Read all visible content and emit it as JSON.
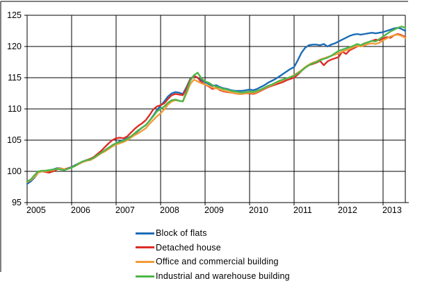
{
  "figure": {
    "background": "#ffffff",
    "frame_color": "#000000",
    "grid_color": "#000000"
  },
  "chart_data": {
    "type": "line",
    "title": "",
    "xlabel": "",
    "ylabel": "",
    "grid": true,
    "legend_position": "bottom-center",
    "x_start_year": 2005,
    "x_frequency": "monthly",
    "x_end_label": "2013-07",
    "x_tick_labels": [
      "2005",
      "2006",
      "2007",
      "2008",
      "2009",
      "2010",
      "2011",
      "2012",
      "2013"
    ],
    "y_ticks": [
      95,
      100,
      105,
      110,
      115,
      120,
      125
    ],
    "ylim": [
      95,
      125
    ],
    "series": [
      {
        "name": "Block of flats",
        "color": "#1b6cb5",
        "values": [
          98.0,
          98.4,
          99.0,
          99.8,
          100.0,
          100.1,
          100.2,
          100.3,
          100.5,
          100.5,
          100.3,
          100.5,
          100.7,
          101.0,
          101.3,
          101.5,
          101.7,
          101.9,
          102.2,
          102.6,
          103.0,
          103.3,
          103.7,
          104.2,
          104.5,
          104.8,
          105.0,
          105.3,
          105.6,
          106.0,
          106.5,
          107.0,
          107.4,
          108.1,
          108.9,
          109.8,
          110.5,
          111.2,
          112.0,
          112.5,
          112.7,
          112.6,
          112.4,
          113.5,
          114.8,
          115.3,
          115.0,
          114.6,
          114.3,
          114.0,
          113.7,
          113.8,
          113.5,
          113.3,
          113.2,
          113.0,
          112.9,
          112.9,
          112.9,
          113.0,
          113.1,
          113.0,
          113.2,
          113.5,
          113.8,
          114.2,
          114.5,
          114.8,
          115.2,
          115.6,
          116.0,
          116.4,
          116.7,
          117.8,
          119.0,
          119.8,
          120.2,
          120.3,
          120.3,
          120.2,
          120.4,
          120.0,
          120.3,
          120.5,
          120.8,
          121.1,
          121.4,
          121.7,
          121.9,
          122.0,
          121.9,
          122.0,
          122.1,
          122.2,
          122.1,
          122.2,
          122.3,
          122.5,
          122.7,
          122.9,
          123.0,
          122.8,
          122.5
        ]
      },
      {
        "name": "Detached house",
        "color": "#dd2c25",
        "values": [
          98.3,
          98.6,
          99.2,
          99.9,
          100.0,
          99.9,
          99.8,
          100.0,
          100.3,
          100.5,
          100.3,
          100.5,
          100.6,
          100.9,
          101.2,
          101.5,
          101.8,
          102.0,
          102.3,
          102.8,
          103.3,
          103.9,
          104.5,
          105.0,
          105.3,
          105.4,
          105.3,
          105.6,
          106.2,
          106.8,
          107.3,
          107.7,
          108.2,
          109.0,
          109.9,
          110.4,
          110.6,
          110.9,
          111.6,
          112.2,
          112.4,
          112.3,
          112.2,
          113.3,
          114.7,
          115.3,
          115.0,
          114.3,
          113.9,
          113.6,
          113.2,
          113.4,
          113.0,
          112.8,
          112.7,
          112.6,
          112.5,
          112.4,
          112.4,
          112.5,
          112.5,
          112.4,
          112.6,
          112.9,
          113.2,
          113.5,
          113.7,
          113.9,
          114.1,
          114.3,
          114.6,
          114.8,
          115.0,
          115.5,
          116.1,
          116.6,
          117.0,
          117.2,
          117.4,
          117.7,
          117.0,
          117.6,
          117.9,
          118.1,
          118.3,
          119.2,
          118.8,
          119.4,
          119.7,
          120.0,
          120.2,
          120.5,
          120.7,
          120.9,
          121.1,
          121.0,
          121.3,
          121.5,
          121.4,
          121.8,
          122.0,
          121.8,
          121.5
        ]
      },
      {
        "name": "Office and commercial building",
        "color": "#f29b38",
        "values": [
          98.3,
          98.6,
          99.1,
          99.8,
          100.0,
          100.0,
          100.1,
          100.2,
          100.4,
          100.5,
          100.3,
          100.4,
          100.6,
          100.9,
          101.2,
          101.5,
          101.7,
          101.8,
          102.1,
          102.5,
          102.9,
          103.2,
          103.6,
          104.0,
          104.3,
          104.5,
          104.7,
          105.0,
          105.4,
          105.8,
          106.1,
          106.5,
          106.9,
          107.6,
          108.2,
          108.8,
          109.3,
          109.9,
          110.7,
          111.2,
          111.4,
          111.3,
          111.2,
          112.5,
          114.0,
          114.7,
          114.4,
          114.1,
          113.9,
          113.7,
          113.4,
          113.3,
          113.1,
          112.9,
          112.8,
          112.6,
          112.5,
          112.4,
          112.4,
          112.5,
          112.6,
          112.5,
          112.7,
          113.0,
          113.3,
          113.6,
          113.8,
          114.1,
          114.4,
          114.6,
          114.9,
          115.1,
          115.4,
          115.8,
          116.2,
          116.7,
          117.1,
          117.4,
          117.6,
          117.9,
          118.1,
          118.3,
          118.5,
          118.7,
          118.9,
          119.2,
          119.4,
          119.6,
          119.9,
          120.1,
          120.0,
          120.2,
          120.4,
          120.5,
          120.4,
          120.6,
          121.0,
          121.3,
          121.6,
          121.8,
          121.9,
          121.7,
          121.4
        ]
      },
      {
        "name": "Industrial and warehouse building",
        "color": "#4eb648",
        "values": [
          98.4,
          98.7,
          99.4,
          100.0,
          100.1,
          100.1,
          100.2,
          100.3,
          100.4,
          100.3,
          100.2,
          100.4,
          100.6,
          100.9,
          101.3,
          101.6,
          101.8,
          101.9,
          102.2,
          102.6,
          103.0,
          103.4,
          103.8,
          104.2,
          104.5,
          104.7,
          104.9,
          105.2,
          105.6,
          106.1,
          106.6,
          107.0,
          107.4,
          108.1,
          108.8,
          109.6,
          110.0,
          110.4,
          111.0,
          111.4,
          111.5,
          111.3,
          111.2,
          112.8,
          114.5,
          115.4,
          115.8,
          114.9,
          114.4,
          114.2,
          113.8,
          113.6,
          113.4,
          113.2,
          113.1,
          112.9,
          112.8,
          112.7,
          112.6,
          112.7,
          112.8,
          112.7,
          112.9,
          113.1,
          113.4,
          113.7,
          113.9,
          114.2,
          114.5,
          114.7,
          114.9,
          115.1,
          115.3,
          115.7,
          116.1,
          116.6,
          117.0,
          117.3,
          117.5,
          117.8,
          118.0,
          118.2,
          118.5,
          118.9,
          119.3,
          119.5,
          119.7,
          119.9,
          120.1,
          120.4,
          120.2,
          120.5,
          120.7,
          120.9,
          120.8,
          121.2,
          121.6,
          122.0,
          122.4,
          122.7,
          123.0,
          123.2,
          123.0
        ]
      }
    ]
  }
}
